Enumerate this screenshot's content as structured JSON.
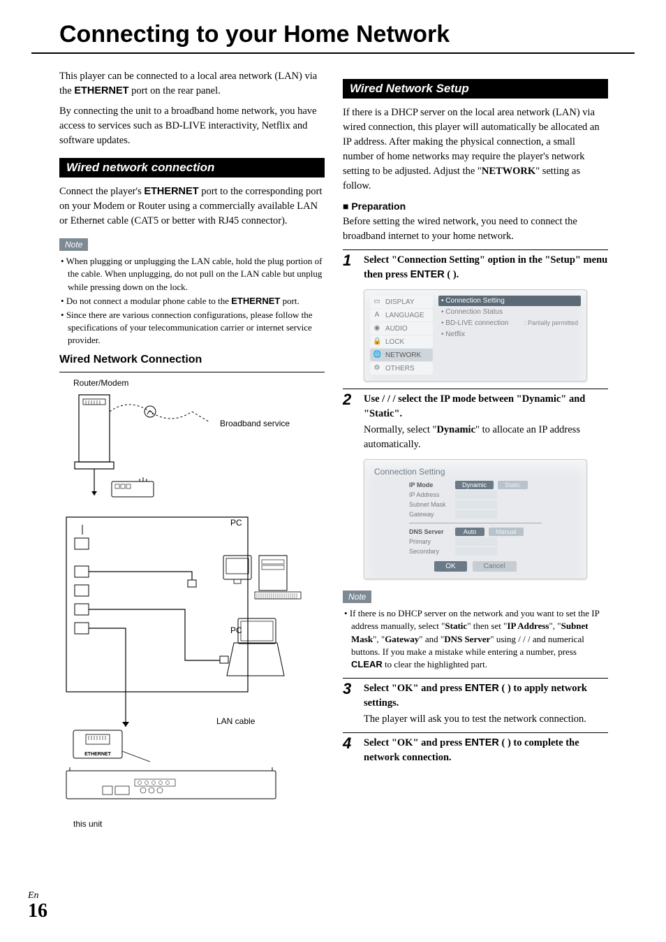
{
  "page_title": "Connecting to your Home Network",
  "intro": {
    "p1_pre": "This player can be connected to a local area network (LAN) via the ",
    "p1_bold": "ETHERNET",
    "p1_post": " port on the rear panel.",
    "p2": "By connecting the unit to a broadband home network, you have access to services such as BD-LIVE interactivity, Netflix and software updates."
  },
  "left": {
    "section1_title": "Wired network connection",
    "p1_pre": "Connect the player's ",
    "p1_bold": "ETHERNET",
    "p1_post": " port to the corresponding port on your Modem or Router using a commercially available LAN or Ethernet cable (CAT5 or better with RJ45 connector).",
    "note_label": "Note",
    "notes": [
      "When plugging or unplugging the LAN cable, hold the plug portion of the cable. When unplugging, do not pull on the LAN cable but unplug while pressing down on the lock.",
      "Do not connect a modular phone cable to the <b class=\"sans\">ETHERNET</b> port.",
      "Since there are various connection configurations, please follow the specifications of your telecommunication carrier or internet service provider."
    ],
    "sub_heading": "Wired Network Connection",
    "diagram": {
      "router_modem": "Router/Modem",
      "broadband": "Broadband service",
      "pc1": "PC",
      "pc2": "PC",
      "lan_cable": "LAN cable",
      "ethernet": "ETHERNET",
      "this_unit": "this unit"
    }
  },
  "right": {
    "section2_title": "Wired Network Setup",
    "p1": "If there is a DHCP server on the local area network (LAN) via wired connection, this player will automatically be allocated an IP address. After making the physical connection, a small number of home networks may require the player's network setting to be adjusted. Adjust the \"<b>NETWORK</b>\" setting as follow.",
    "prep_heading": "■ Preparation",
    "prep_text": "Before setting the wired network, you need to connect the broadband internet to your home network.",
    "step1": "Select \"Connection Setting\" option in the \"Setup\" menu then press <b class=\"sans\">ENTER</b> (    ).",
    "step2_instr": "Use    /    /    /    select the IP mode between \"Dynamic\" and \"Static\".",
    "step2_desc": "Normally, select \"<b>Dynamic</b>\" to allocate an IP address automatically.",
    "note2_label": "Note",
    "note2_text": "If there is no DHCP server on the network and you want to set the IP address manually, select \"<b>Static</b>\" then set \"<b>IP Address</b>\", \"<b>Subnet Mask</b>\", \"<b>Gateway</b>\" and \"<b>DNS Server</b>\" using    /    /    /    and numerical buttons. If you make a mistake while entering a number, press <b class=\"sans\">CLEAR</b> to clear the highlighted part.",
    "step3_instr": "Select \"OK\" and press <b class=\"sans\">ENTER</b> (    ) to apply network settings.",
    "step3_desc": "The player will ask you to test the network connection.",
    "step4_instr": "Select \"OK\" and press <b class=\"sans\">ENTER</b> (    ) to complete the network connection.",
    "setup_menu": {
      "left_items": [
        "DISPLAY",
        "LANGUAGE",
        "AUDIO",
        "LOCK",
        "NETWORK",
        "OTHERS"
      ],
      "active_index": 4,
      "right_items": [
        {
          "label": "Connection Setting",
          "selected": true
        },
        {
          "label": "Connection Status"
        },
        {
          "label": "BD-LIVE connection",
          "value": ": Partially permitted"
        },
        {
          "label": "Netflix"
        }
      ],
      "icons": [
        "▭",
        "A",
        "◉",
        "🔒",
        "🌐",
        "⚙"
      ]
    },
    "conn_dialog": {
      "title": "Connection Setting",
      "ip_mode": "IP Mode",
      "dynamic": "Dynamic",
      "static": "Static",
      "ip_address": "IP Address",
      "subnet": "Subnet Mask",
      "gateway": "Gateway",
      "dns": "DNS Server",
      "auto": "Auto",
      "manual": "Manual",
      "primary": "Primary",
      "secondary": "Secondary",
      "ok": "OK",
      "cancel": "Cancel"
    }
  },
  "footer": {
    "lang": "En",
    "page": "16"
  },
  "colors": {
    "black": "#000000",
    "note_bg": "#7e8a93",
    "menu_bg": "#e8eaed",
    "menu_sel": "#5a6a76",
    "pill_active": "#6b7a86"
  }
}
